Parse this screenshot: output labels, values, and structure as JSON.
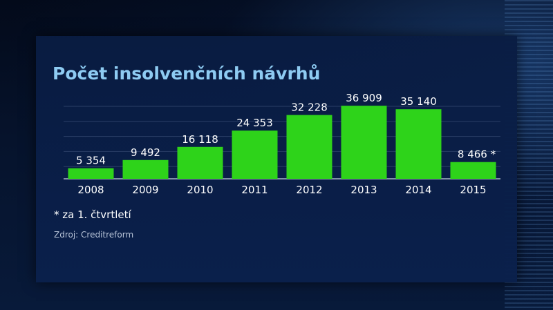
{
  "title": "Počet insolvenčních návrhů",
  "footnote": "* za 1. čtvrtletí",
  "source": "Zdroj: Creditreform",
  "colors": {
    "bar": "#2ed31a",
    "title": "#8ecbf2",
    "background": "#0a1f4a"
  },
  "chart_data": {
    "type": "bar",
    "title": "Počet insolvenčních návrhů",
    "categories": [
      "2008",
      "2009",
      "2010",
      "2011",
      "2012",
      "2013",
      "2014",
      "2015"
    ],
    "values": [
      5354,
      9492,
      16118,
      24353,
      32228,
      36909,
      35140,
      8466
    ],
    "value_labels": [
      "5 354",
      "9 492",
      "16 118",
      "24 353",
      "32 228",
      "36 909",
      "35 140",
      "8 466 *"
    ],
    "xlabel": "",
    "ylabel": "",
    "ylim": [
      0,
      38000
    ],
    "grid": true,
    "legend": "none"
  }
}
